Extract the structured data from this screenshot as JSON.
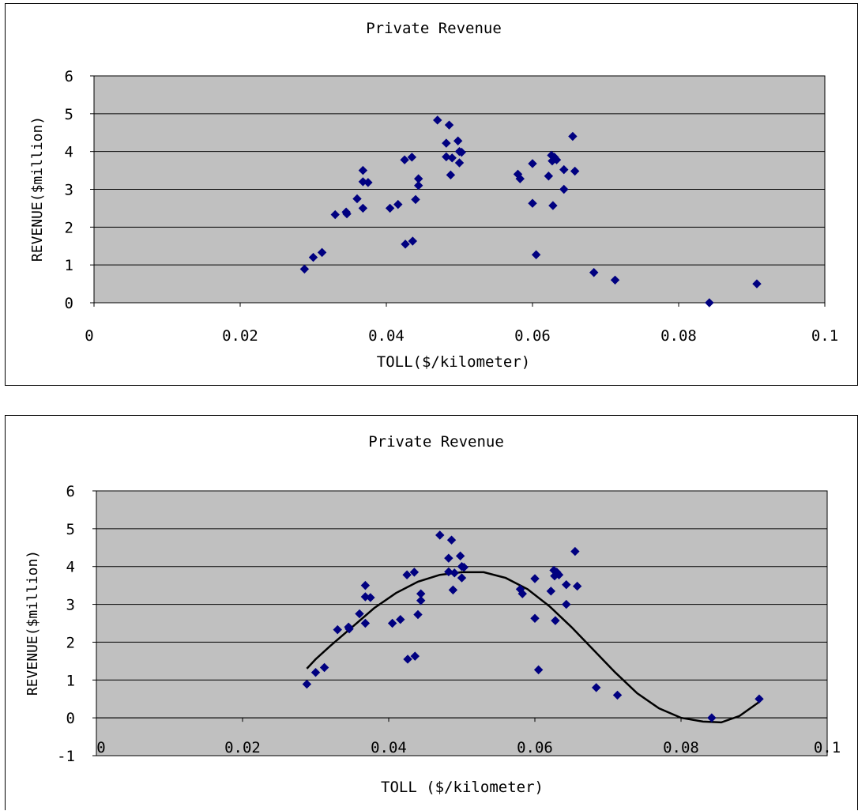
{
  "charts": [
    {
      "title": "Private Revenue",
      "xlabel": "TOLL($/kilometer)",
      "ylabel": "REVENUE($million)",
      "x_ticks": [
        "0",
        "0.02",
        "0.04",
        "0.06",
        "0.08",
        "0.1"
      ],
      "y_ticks": [
        "6",
        "5",
        "4",
        "3",
        "2",
        "1",
        "0"
      ]
    },
    {
      "title": "Private Revenue",
      "xlabel": "TOLL ($/kilometer)",
      "ylabel": "REVENUE($million)",
      "x_ticks": [
        "0",
        "0.02",
        "0.04",
        "0.06",
        "0.08",
        "0.1"
      ],
      "y_ticks": [
        "6",
        "5",
        "4",
        "3",
        "2",
        "1",
        "0",
        "-1"
      ]
    }
  ],
  "colors": {
    "plot_bg": "#c0c0c0",
    "marker": "#000080",
    "trend": "#000000",
    "grid": "#000000"
  },
  "chart_data": [
    {
      "type": "scatter",
      "title": "Private Revenue",
      "xlabel": "TOLL($/kilometer)",
      "ylabel": "REVENUE($million)",
      "xlim": [
        0,
        0.1
      ],
      "ylim": [
        0,
        6
      ],
      "grid": true,
      "legend": "none",
      "points": [
        [
          0.0288,
          0.89
        ],
        [
          0.03,
          1.2
        ],
        [
          0.0312,
          1.33
        ],
        [
          0.033,
          2.33
        ],
        [
          0.0345,
          2.4
        ],
        [
          0.0346,
          2.35
        ],
        [
          0.036,
          2.75
        ],
        [
          0.0368,
          2.5
        ],
        [
          0.0368,
          3.5
        ],
        [
          0.0368,
          3.2
        ],
        [
          0.0375,
          3.18
        ],
        [
          0.0405,
          2.5
        ],
        [
          0.0416,
          2.6
        ],
        [
          0.0425,
          3.78
        ],
        [
          0.0426,
          1.55
        ],
        [
          0.0435,
          3.85
        ],
        [
          0.0436,
          1.63
        ],
        [
          0.044,
          2.73
        ],
        [
          0.0444,
          3.1
        ],
        [
          0.0444,
          3.28
        ],
        [
          0.047,
          4.83
        ],
        [
          0.0482,
          4.22
        ],
        [
          0.0482,
          3.86
        ],
        [
          0.0486,
          4.7
        ],
        [
          0.0488,
          3.38
        ],
        [
          0.049,
          3.83
        ],
        [
          0.0498,
          4.28
        ],
        [
          0.05,
          4.0
        ],
        [
          0.05,
          3.7
        ],
        [
          0.0503,
          3.98
        ],
        [
          0.058,
          3.4
        ],
        [
          0.0583,
          3.28
        ],
        [
          0.06,
          2.63
        ],
        [
          0.06,
          3.68
        ],
        [
          0.0605,
          1.27
        ],
        [
          0.0622,
          3.35
        ],
        [
          0.0626,
          3.9
        ],
        [
          0.0627,
          3.75
        ],
        [
          0.0628,
          2.57
        ],
        [
          0.063,
          3.85
        ],
        [
          0.0633,
          3.78
        ],
        [
          0.0643,
          3.0
        ],
        [
          0.0643,
          3.52
        ],
        [
          0.0655,
          4.4
        ],
        [
          0.0658,
          3.48
        ],
        [
          0.0684,
          0.8
        ],
        [
          0.0713,
          0.6
        ],
        [
          0.0842,
          0.0
        ],
        [
          0.0907,
          0.5
        ]
      ]
    },
    {
      "type": "scatter",
      "title": "Private Revenue",
      "xlabel": "TOLL ($/kilometer)",
      "ylabel": "REVENUE($million)",
      "xlim": [
        0,
        0.1
      ],
      "ylim": [
        -1,
        6
      ],
      "grid": true,
      "legend": "none",
      "points": [
        [
          0.0288,
          0.89
        ],
        [
          0.03,
          1.2
        ],
        [
          0.0312,
          1.33
        ],
        [
          0.033,
          2.33
        ],
        [
          0.0345,
          2.4
        ],
        [
          0.0346,
          2.35
        ],
        [
          0.036,
          2.75
        ],
        [
          0.0368,
          2.5
        ],
        [
          0.0368,
          3.5
        ],
        [
          0.0368,
          3.2
        ],
        [
          0.0375,
          3.18
        ],
        [
          0.0405,
          2.5
        ],
        [
          0.0416,
          2.6
        ],
        [
          0.0425,
          3.78
        ],
        [
          0.0426,
          1.55
        ],
        [
          0.0435,
          3.85
        ],
        [
          0.0436,
          1.63
        ],
        [
          0.044,
          2.73
        ],
        [
          0.0444,
          3.1
        ],
        [
          0.0444,
          3.28
        ],
        [
          0.047,
          4.83
        ],
        [
          0.0482,
          4.22
        ],
        [
          0.0482,
          3.86
        ],
        [
          0.0486,
          4.7
        ],
        [
          0.0488,
          3.38
        ],
        [
          0.049,
          3.83
        ],
        [
          0.0498,
          4.28
        ],
        [
          0.05,
          4.0
        ],
        [
          0.05,
          3.7
        ],
        [
          0.0503,
          3.98
        ],
        [
          0.058,
          3.4
        ],
        [
          0.0583,
          3.28
        ],
        [
          0.06,
          2.63
        ],
        [
          0.06,
          3.68
        ],
        [
          0.0605,
          1.27
        ],
        [
          0.0622,
          3.35
        ],
        [
          0.0626,
          3.9
        ],
        [
          0.0627,
          3.75
        ],
        [
          0.0628,
          2.57
        ],
        [
          0.063,
          3.85
        ],
        [
          0.0633,
          3.78
        ],
        [
          0.0643,
          3.0
        ],
        [
          0.0643,
          3.52
        ],
        [
          0.0655,
          4.4
        ],
        [
          0.0658,
          3.48
        ],
        [
          0.0684,
          0.8
        ],
        [
          0.0713,
          0.6
        ],
        [
          0.0842,
          0.0
        ],
        [
          0.0907,
          0.5
        ]
      ],
      "trendline": {
        "type": "polynomial",
        "points": [
          [
            0.0288,
            1.3
          ],
          [
            0.03,
            1.55
          ],
          [
            0.032,
            1.9
          ],
          [
            0.035,
            2.4
          ],
          [
            0.038,
            2.9
          ],
          [
            0.041,
            3.3
          ],
          [
            0.044,
            3.6
          ],
          [
            0.047,
            3.78
          ],
          [
            0.05,
            3.85
          ],
          [
            0.053,
            3.85
          ],
          [
            0.056,
            3.7
          ],
          [
            0.059,
            3.4
          ],
          [
            0.062,
            2.95
          ],
          [
            0.065,
            2.4
          ],
          [
            0.068,
            1.8
          ],
          [
            0.071,
            1.2
          ],
          [
            0.074,
            0.65
          ],
          [
            0.077,
            0.25
          ],
          [
            0.08,
            0.0
          ],
          [
            0.083,
            -0.1
          ],
          [
            0.0855,
            -0.12
          ],
          [
            0.088,
            0.05
          ],
          [
            0.0907,
            0.42
          ]
        ]
      }
    }
  ]
}
